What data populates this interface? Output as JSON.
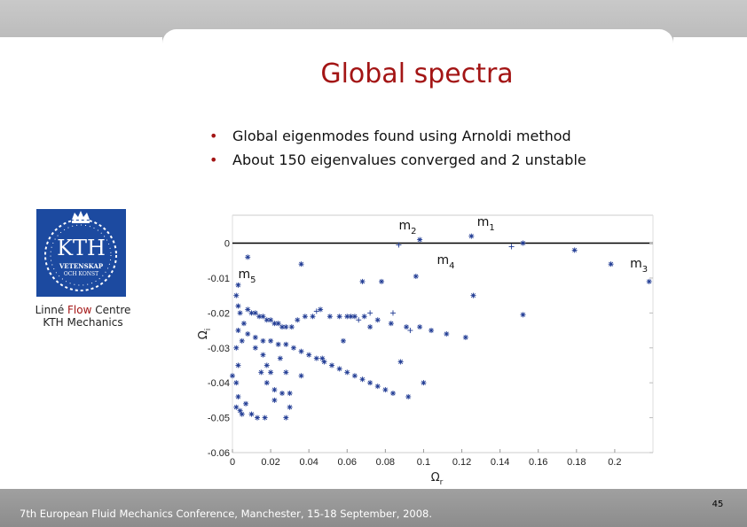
{
  "slide": {
    "title": "Global spectra",
    "bullets": [
      "Global eigenmodes found using Arnoldi method",
      "About 150 eigenvalues converged and 2 unstable"
    ],
    "logo_text": [
      "KTH",
      "VETENSKAP",
      "OCH KONST"
    ],
    "lab_name": {
      "pre": "Linné ",
      "highlight": "Flow",
      "post": " Centre"
    },
    "lab_sub": "KTH Mechanics",
    "footer": "7th European Fluid Mechanics Conference, Manchester, 15-18 September, 2008.",
    "page_number": "45",
    "colors": {
      "title": "#a31515",
      "marker": "#1f3a93",
      "logo": "#1c4aa0",
      "footer": "#969696"
    }
  },
  "chart_data": {
    "type": "scatter",
    "xlabel": "Ω_r",
    "ylabel": "Ω_i",
    "xlim": [
      0,
      0.22
    ],
    "ylim": [
      -0.06,
      0.008
    ],
    "xticks": [
      "0",
      "0.02",
      "0.04",
      "0.06",
      "0.08",
      "0.1",
      "0.12",
      "0.14",
      "0.16",
      "0.18",
      "0.2"
    ],
    "yticks": [
      "0",
      "-0.01",
      "-0.02",
      "-0.03",
      "-0.04",
      "-0.05",
      "-0.06"
    ],
    "reference_line_y": 0,
    "labels": [
      {
        "base": "m",
        "sub": "1",
        "x": 0.128,
        "y": 0.005
      },
      {
        "base": "m",
        "sub": "2",
        "x": 0.087,
        "y": 0.004
      },
      {
        "base": "m",
        "sub": "3",
        "x": 0.208,
        "y": -0.007
      },
      {
        "base": "m",
        "sub": "4",
        "x": 0.107,
        "y": -0.006
      },
      {
        "base": "m",
        "sub": "5",
        "x": 0.003,
        "y": -0.01
      }
    ],
    "series": [
      {
        "marker": "*",
        "points": [
          [
            0.125,
            0.002
          ],
          [
            0.098,
            0.001
          ],
          [
            0.152,
            0.0
          ],
          [
            0.179,
            -0.002
          ],
          [
            0.198,
            -0.006
          ],
          [
            0.218,
            -0.011
          ],
          [
            0.008,
            -0.004
          ],
          [
            0.036,
            -0.006
          ],
          [
            0.068,
            -0.011
          ],
          [
            0.078,
            -0.011
          ],
          [
            0.096,
            -0.0095
          ],
          [
            0.126,
            -0.015
          ],
          [
            0.152,
            -0.0205
          ],
          [
            0.003,
            -0.012
          ],
          [
            0.002,
            -0.015
          ],
          [
            0.003,
            -0.018
          ],
          [
            0.004,
            -0.02
          ],
          [
            0.006,
            -0.023
          ],
          [
            0.003,
            -0.025
          ],
          [
            0.005,
            -0.028
          ],
          [
            0.008,
            -0.019
          ],
          [
            0.01,
            -0.02
          ],
          [
            0.012,
            -0.02
          ],
          [
            0.014,
            -0.021
          ],
          [
            0.016,
            -0.021
          ],
          [
            0.018,
            -0.022
          ],
          [
            0.02,
            -0.022
          ],
          [
            0.022,
            -0.023
          ],
          [
            0.024,
            -0.023
          ],
          [
            0.026,
            -0.024
          ],
          [
            0.028,
            -0.024
          ],
          [
            0.031,
            -0.024
          ],
          [
            0.034,
            -0.022
          ],
          [
            0.038,
            -0.021
          ],
          [
            0.042,
            -0.021
          ],
          [
            0.046,
            -0.019
          ],
          [
            0.051,
            -0.021
          ],
          [
            0.056,
            -0.021
          ],
          [
            0.062,
            -0.021
          ],
          [
            0.069,
            -0.021
          ],
          [
            0.076,
            -0.022
          ],
          [
            0.083,
            -0.023
          ],
          [
            0.091,
            -0.024
          ],
          [
            0.098,
            -0.024
          ],
          [
            0.104,
            -0.025
          ],
          [
            0.112,
            -0.026
          ],
          [
            0.122,
            -0.027
          ],
          [
            0.008,
            -0.026
          ],
          [
            0.012,
            -0.027
          ],
          [
            0.016,
            -0.028
          ],
          [
            0.02,
            -0.028
          ],
          [
            0.024,
            -0.029
          ],
          [
            0.028,
            -0.029
          ],
          [
            0.032,
            -0.03
          ],
          [
            0.036,
            -0.031
          ],
          [
            0.04,
            -0.032
          ],
          [
            0.044,
            -0.033
          ],
          [
            0.048,
            -0.034
          ],
          [
            0.052,
            -0.035
          ],
          [
            0.056,
            -0.036
          ],
          [
            0.06,
            -0.037
          ],
          [
            0.064,
            -0.038
          ],
          [
            0.068,
            -0.039
          ],
          [
            0.072,
            -0.04
          ],
          [
            0.076,
            -0.041
          ],
          [
            0.08,
            -0.042
          ],
          [
            0.084,
            -0.043
          ],
          [
            0.092,
            -0.044
          ],
          [
            0.1,
            -0.04
          ],
          [
            0.012,
            -0.03
          ],
          [
            0.016,
            -0.032
          ],
          [
            0.018,
            -0.035
          ],
          [
            0.015,
            -0.037
          ],
          [
            0.02,
            -0.037
          ],
          [
            0.018,
            -0.04
          ],
          [
            0.025,
            -0.033
          ],
          [
            0.028,
            -0.037
          ],
          [
            0.022,
            -0.042
          ],
          [
            0.026,
            -0.043
          ],
          [
            0.03,
            -0.043
          ],
          [
            0.03,
            -0.047
          ],
          [
            0.028,
            -0.05
          ],
          [
            0.036,
            -0.038
          ],
          [
            0.002,
            -0.03
          ],
          [
            0.003,
            -0.035
          ],
          [
            0.002,
            -0.04
          ],
          [
            0.003,
            -0.044
          ],
          [
            0.002,
            -0.047
          ],
          [
            0.004,
            -0.048
          ],
          [
            0.005,
            -0.049
          ],
          [
            0.007,
            -0.046
          ],
          [
            0.01,
            -0.049
          ],
          [
            0.013,
            -0.05
          ],
          [
            0.017,
            -0.05
          ],
          [
            0.022,
            -0.045
          ],
          [
            0.047,
            -0.033
          ],
          [
            0.058,
            -0.028
          ],
          [
            0.072,
            -0.024
          ],
          [
            0.088,
            -0.034
          ],
          [
            0.0,
            -0.038
          ],
          [
            0.06,
            -0.021
          ],
          [
            0.064,
            -0.021
          ]
        ]
      },
      {
        "marker": "+",
        "points": [
          [
            0.146,
            -0.001
          ],
          [
            0.087,
            -0.0005
          ],
          [
            0.093,
            -0.025
          ],
          [
            0.044,
            -0.0195
          ],
          [
            0.066,
            -0.022
          ],
          [
            0.072,
            -0.02
          ],
          [
            0.084,
            -0.02
          ]
        ]
      }
    ]
  }
}
